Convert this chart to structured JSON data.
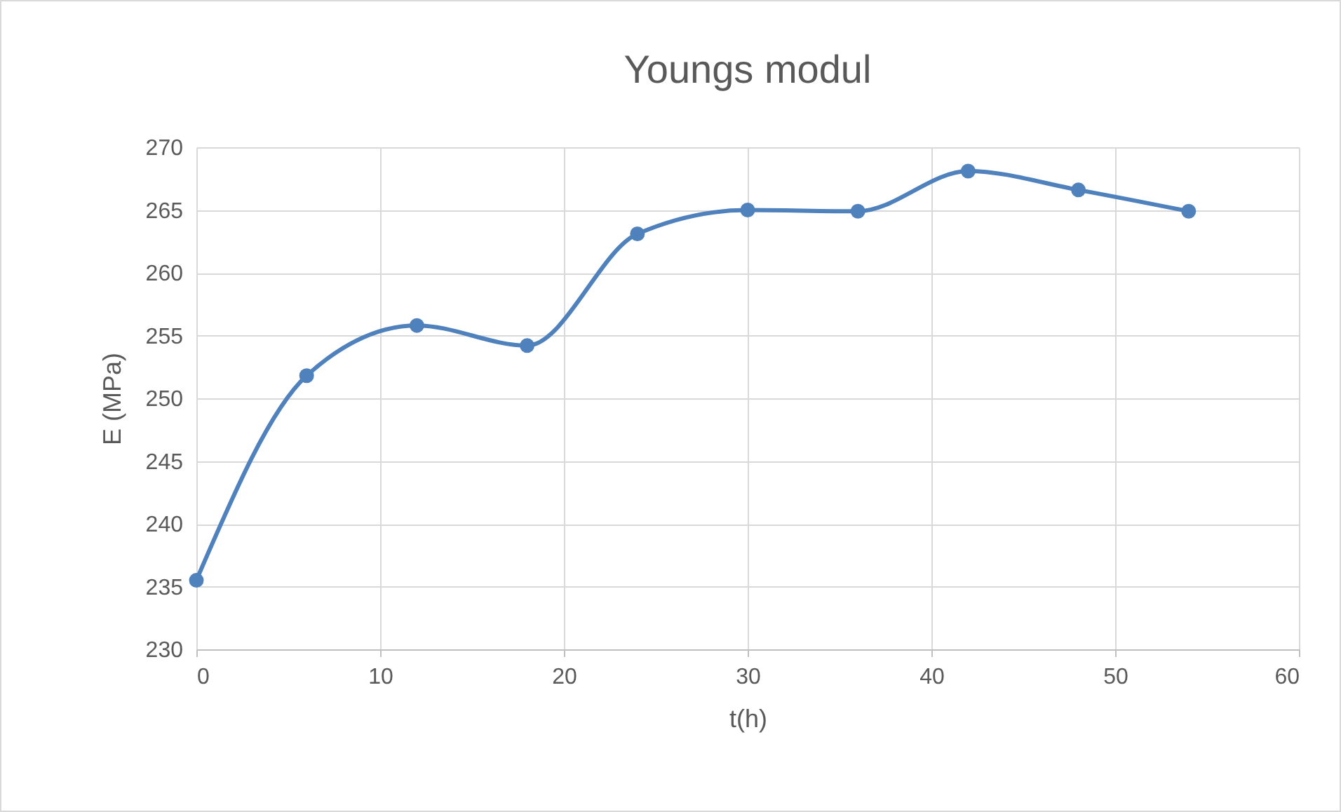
{
  "chart_data": {
    "type": "line",
    "title": "Youngs modul",
    "xlabel": "t(h)",
    "ylabel": "E (MPa)",
    "x": [
      0,
      6,
      12,
      18,
      24,
      30,
      36,
      42,
      48,
      54
    ],
    "values": [
      235.5,
      251.8,
      255.8,
      254.2,
      263.1,
      265.0,
      264.9,
      268.1,
      266.6,
      264.9
    ],
    "color": "#4f81bd",
    "xlim": [
      0,
      60
    ],
    "xticks": [
      0,
      10,
      20,
      30,
      40,
      50,
      60
    ],
    "ylim": [
      230,
      270
    ],
    "yticks": [
      230,
      235,
      240,
      245,
      250,
      255,
      260,
      265,
      270
    ],
    "grid": true,
    "marker": "circle",
    "line_style": "solid"
  }
}
